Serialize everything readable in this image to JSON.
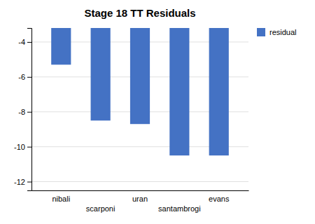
{
  "chart_data": {
    "type": "bar",
    "title": "Stage 18 TT Residuals",
    "categories": [
      "nibali",
      "scarponi",
      "uran",
      "santambrogi",
      "evans"
    ],
    "series": [
      {
        "name": "residual",
        "color": "#4472C4",
        "values": [
          -5.3,
          -8.5,
          -8.7,
          -10.5,
          -10.5
        ]
      }
    ],
    "ylim": [
      -12.5,
      -3.2
    ],
    "yticks": [
      -4,
      -6,
      -8,
      -10,
      -12
    ],
    "grid": true,
    "legend": "upper right"
  }
}
